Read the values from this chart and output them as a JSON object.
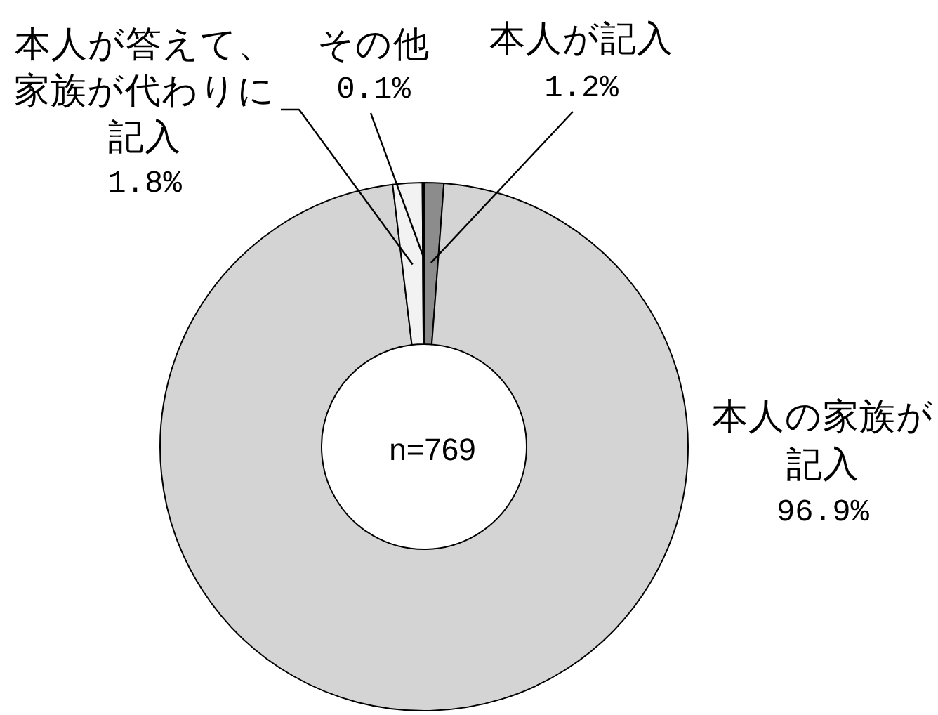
{
  "chart_data": {
    "type": "donut",
    "categories": [
      "本人が記入",
      "本人の家族が記入",
      "本人が答えて、家族が代わりに記入",
      "その他"
    ],
    "values": [
      1.2,
      96.9,
      1.8,
      0.1
    ],
    "colors": [
      "#8c8c8c",
      "#d4d4d4",
      "#f2f2f2",
      "#000000"
    ],
    "value_labels": [
      "1.2%",
      "96.9%",
      "1.8%",
      "0.1%"
    ],
    "annotations": [
      "n=769"
    ]
  }
}
